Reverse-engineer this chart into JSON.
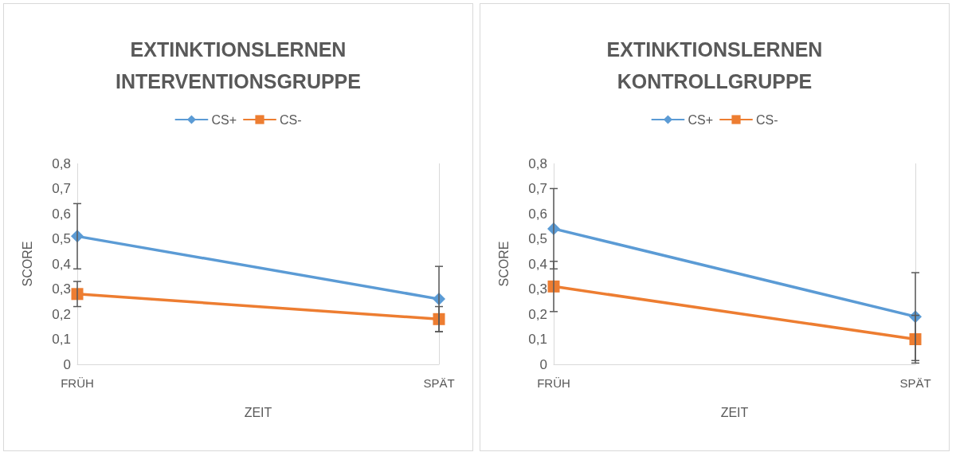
{
  "chart_data": [
    {
      "type": "line",
      "title": "EXTINKTIONSLERNEN\nINTERVENTIONSGRUPPE",
      "xlabel": "ZEIT",
      "ylabel": "SCORE",
      "categories": [
        "FRÜH",
        "SPÄT"
      ],
      "series": [
        {
          "name": "CS+",
          "color": "#5b9bd5",
          "marker": "diamond",
          "values": [
            0.51,
            0.26
          ],
          "errors": [
            0.13,
            0.13
          ]
        },
        {
          "name": "CS-",
          "color": "#ed7d31",
          "marker": "square",
          "values": [
            0.28,
            0.18
          ],
          "errors": [
            0.05,
            0.05
          ]
        }
      ],
      "ylim": [
        0,
        0.8
      ],
      "yticks": [
        0,
        {
          "value": 0.1,
          "label": "0,1"
        },
        {
          "value": 0.2,
          "label": "0,2"
        },
        {
          "value": 0.3,
          "label": "0,3"
        },
        {
          "value": 0.4,
          "label": "0,4"
        },
        {
          "value": 0.5,
          "label": "0,5"
        },
        {
          "value": 0.6,
          "label": "0,6"
        },
        {
          "value": 0.7,
          "label": "0,7"
        },
        {
          "value": 0.8,
          "label": "0,8"
        }
      ],
      "grid": "x",
      "legend": "top",
      "line_style": "solid"
    },
    {
      "type": "line",
      "title": "EXTINKTIONSLERNEN\nKONTROLLGRUPPE",
      "xlabel": "ZEIT",
      "ylabel": "SCORE",
      "categories": [
        "FRÜH",
        "SPÄT"
      ],
      "series": [
        {
          "name": "CS+",
          "color": "#5b9bd5",
          "marker": "diamond",
          "values": [
            0.54,
            0.19
          ],
          "errors": [
            0.16,
            0.175
          ]
        },
        {
          "name": "CS-",
          "color": "#ed7d31",
          "marker": "square",
          "values": [
            0.31,
            0.1
          ],
          "errors": [
            0.1,
            0.095
          ]
        }
      ],
      "ylim": [
        0,
        0.8
      ],
      "yticks": [
        0,
        {
          "value": 0.1,
          "label": "0,1"
        },
        {
          "value": 0.2,
          "label": "0,2"
        },
        {
          "value": 0.3,
          "label": "0,3"
        },
        {
          "value": 0.4,
          "label": "0,4"
        },
        {
          "value": 0.5,
          "label": "0,5"
        },
        {
          "value": 0.6,
          "label": "0,6"
        },
        {
          "value": 0.7,
          "label": "0,7"
        },
        {
          "value": 0.8,
          "label": "0,8"
        }
      ],
      "grid": "x",
      "legend": "top",
      "line_style": "solid"
    }
  ]
}
